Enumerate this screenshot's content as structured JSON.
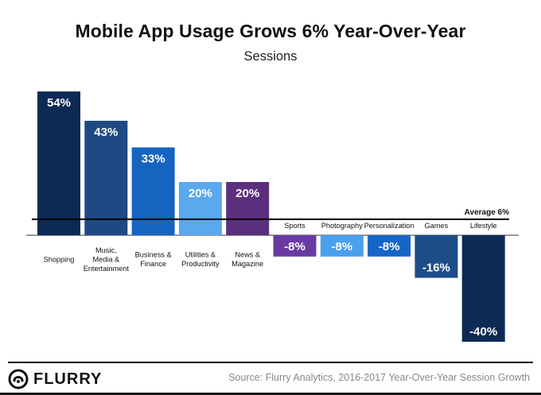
{
  "title": "Mobile App Usage Grows 6% Year-Over-Year",
  "subtitle": "Sessions",
  "average_label": "Average 6%",
  "source": "Source: Flurry Analytics, 2016-2017 Year-Over-Year Session Growth",
  "logo_text": "FLURRY",
  "chart_data": {
    "type": "bar",
    "title": "Mobile App Usage Grows 6% Year-Over-Year",
    "subtitle": "Sessions",
    "categories": [
      {
        "lines": [
          "Shopping"
        ]
      },
      {
        "lines": [
          "Music,",
          "Media &",
          "Entertainment"
        ]
      },
      {
        "lines": [
          "Business &",
          "Finance"
        ]
      },
      {
        "lines": [
          "Utilities &",
          "Productivity"
        ]
      },
      {
        "lines": [
          "News &",
          "Magazine"
        ]
      },
      {
        "lines": [
          "Sports"
        ]
      },
      {
        "lines": [
          "Photography"
        ]
      },
      {
        "lines": [
          "Personalization"
        ]
      },
      {
        "lines": [
          "Games"
        ]
      },
      {
        "lines": [
          "Lifestyle"
        ]
      }
    ],
    "values": [
      54,
      43,
      33,
      20,
      20,
      -8,
      -8,
      -8,
      -16,
      -40
    ],
    "labels": [
      "54%",
      "43%",
      "33%",
      "20%",
      "20%",
      "-8%",
      "-8%",
      "-8%",
      "-16%",
      "-40%"
    ],
    "colors": [
      "#0d2a55",
      "#1d4a83",
      "#1565c0",
      "#5aa8ee",
      "#5b2f7d",
      "#6a3aa3",
      "#4aa0ec",
      "#1666c6",
      "#1c4d88",
      "#0d2a55"
    ],
    "reference_line": {
      "value": 6,
      "label": "Average 6%"
    },
    "ylim": [
      -40,
      54
    ],
    "grid": false,
    "legend": "none"
  }
}
